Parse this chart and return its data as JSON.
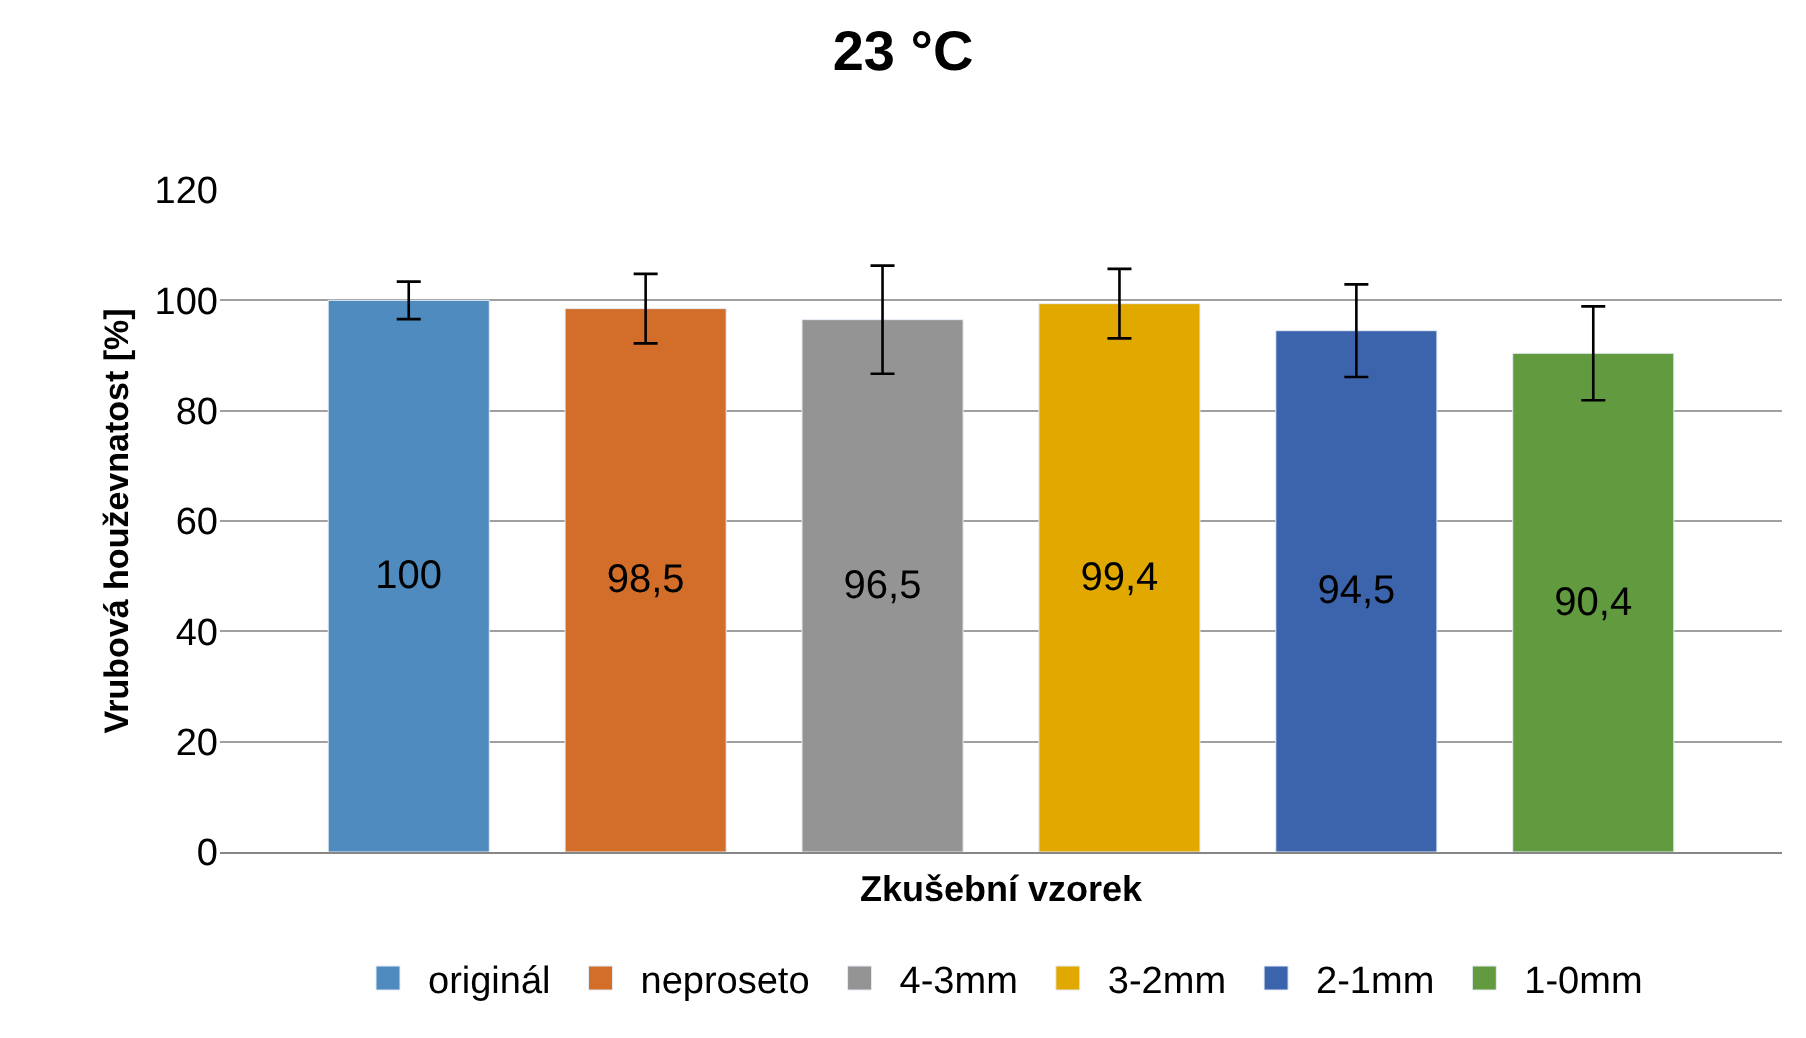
{
  "chart_data": {
    "type": "bar",
    "title": "23 °C",
    "xlabel": "Zkušební vzorek",
    "ylabel": "Vrubová houževnatost [%]",
    "categories": [
      null
    ],
    "series": [
      {
        "name": "originál",
        "color": "#4f8bbf",
        "values": [
          100
        ],
        "errors": [
          3.4
        ],
        "value_labels": [
          "100"
        ]
      },
      {
        "name": "neproseto",
        "color": "#d26e2a",
        "values": [
          98.5
        ],
        "errors": [
          6.3
        ],
        "value_labels": [
          "98,5"
        ]
      },
      {
        "name": "4-3mm",
        "color": "#949494",
        "values": [
          96.5
        ],
        "errors": [
          9.8
        ],
        "value_labels": [
          "96,5"
        ]
      },
      {
        "name": "3-2mm",
        "color": "#e1a900",
        "values": [
          99.4
        ],
        "errors": [
          6.3
        ],
        "value_labels": [
          "99,4"
        ]
      },
      {
        "name": "2-1mm",
        "color": "#3c64ac",
        "values": [
          94.5
        ],
        "errors": [
          8.4
        ],
        "value_labels": [
          "94,5"
        ]
      },
      {
        "name": "1-0mm",
        "color": "#629a3f",
        "values": [
          90.4
        ],
        "errors": [
          8.5
        ],
        "value_labels": [
          "90,4"
        ]
      }
    ],
    "ylim": [
      0,
      120
    ],
    "yticks": [
      0,
      20,
      40,
      60,
      80,
      100,
      120
    ],
    "grid": "y",
    "legend": "bottom"
  }
}
